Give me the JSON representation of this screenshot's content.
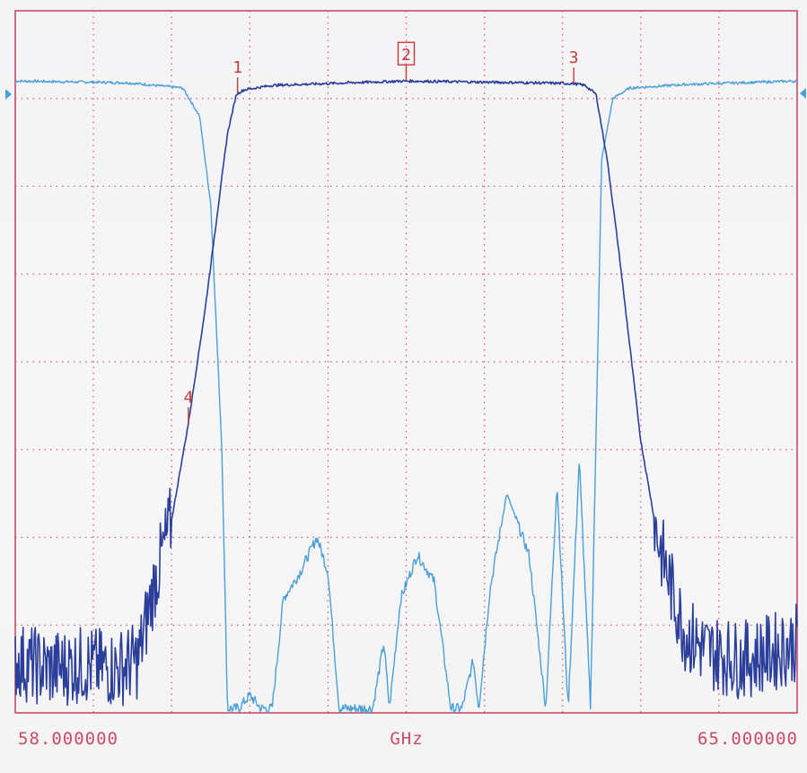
{
  "chart_data": {
    "type": "line",
    "x_unit": "GHz",
    "x_start_label": "58.000000",
    "x_stop_label": "65.000000",
    "xlim": [
      58.0,
      65.0
    ],
    "ylim_divisions": [
      0,
      8
    ],
    "grid": true,
    "grid_divisions": {
      "x": 10,
      "y": 8
    },
    "reference_level_division": 7.15,
    "markers": [
      {
        "label": "1",
        "x": 59.99,
        "active": false
      },
      {
        "label": "2",
        "x": 61.5,
        "active": true
      },
      {
        "label": "3",
        "x": 63.0,
        "active": false
      },
      {
        "label": "4",
        "x": 59.55,
        "active": false
      }
    ],
    "series": [
      {
        "trace": "transmission",
        "color": "#2b3f9a",
        "x": [
          58.0,
          58.3,
          58.6,
          58.9,
          59.1,
          59.25,
          59.4,
          59.55,
          59.7,
          59.8,
          59.9,
          59.98,
          60.05,
          60.3,
          61.0,
          61.5,
          62.0,
          62.6,
          63.0,
          63.1,
          63.2,
          63.3,
          63.4,
          63.5,
          63.6,
          63.75,
          63.9,
          64.0,
          64.2,
          64.5,
          64.8,
          65.0
        ],
        "y": [
          0.6,
          0.5,
          0.55,
          0.5,
          0.6,
          1.5,
          2.2,
          3.3,
          4.6,
          5.6,
          6.6,
          7.05,
          7.1,
          7.15,
          7.18,
          7.2,
          7.19,
          7.18,
          7.17,
          7.15,
          7.05,
          6.3,
          5.3,
          4.2,
          3.1,
          2.0,
          1.3,
          0.9,
          0.7,
          0.6,
          0.7,
          0.8
        ]
      },
      {
        "trace": "reflection",
        "color": "#4a9fd8",
        "x": [
          58.0,
          59.0,
          59.5,
          59.65,
          59.75,
          59.85,
          59.9,
          60.0,
          60.1,
          60.2,
          60.3,
          60.4,
          60.55,
          60.7,
          60.8,
          60.9,
          61.05,
          61.2,
          61.3,
          61.35,
          61.45,
          61.6,
          61.75,
          61.9,
          62.0,
          62.1,
          62.15,
          62.25,
          62.4,
          62.6,
          62.75,
          62.85,
          62.95,
          63.05,
          63.15,
          63.25,
          63.35,
          63.5,
          64.0,
          65.0
        ],
        "y": [
          7.2,
          7.18,
          7.12,
          6.8,
          5.8,
          3.0,
          0.05,
          0.05,
          0.2,
          0.05,
          0.05,
          1.3,
          1.6,
          2.0,
          1.6,
          0.05,
          0.05,
          0.05,
          0.8,
          0.05,
          1.3,
          1.8,
          1.5,
          0.05,
          0.05,
          0.6,
          0.05,
          1.4,
          2.5,
          1.8,
          0.05,
          2.6,
          0.05,
          2.9,
          0.05,
          6.3,
          7.0,
          7.12,
          7.16,
          7.2
        ]
      }
    ]
  }
}
